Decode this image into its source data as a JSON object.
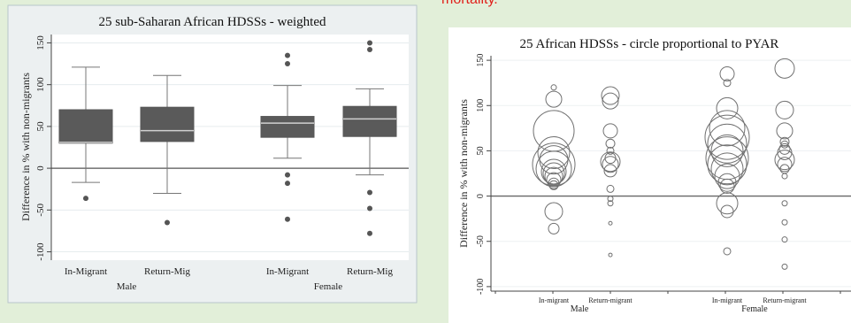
{
  "slide": {
    "header_fragment": "mortality."
  },
  "chart_data": [
    {
      "type": "boxplot",
      "title": "25 sub-Saharan African HDSSs - weighted",
      "xlabel": "",
      "ylabel": "Difference in % with non-migrants",
      "ylim": [
        -110,
        160
      ],
      "yticks": [
        -100,
        -50,
        0,
        50,
        100,
        150
      ],
      "reference_line": 0,
      "grid": true,
      "box_color": "#5a5a5a",
      "groups": [
        {
          "label": "Male",
          "categories": [
            "In-Migrant",
            "Return-Mig"
          ]
        },
        {
          "label": "Female",
          "categories": [
            "In-Migrant",
            "Return-Mig"
          ]
        }
      ],
      "boxes": [
        {
          "group": "Male",
          "category": "In-Migrant",
          "whisker_low": -17,
          "q1": 30,
          "median": 31,
          "q3": 70,
          "whisker_high": 121,
          "outliers": [
            -36
          ]
        },
        {
          "group": "Male",
          "category": "Return-Mig",
          "whisker_low": -30,
          "q1": 32,
          "median": 45,
          "q3": 73,
          "whisker_high": 111,
          "outliers": [
            -65
          ]
        },
        {
          "group": "Female",
          "category": "In-Migrant",
          "whisker_low": 12,
          "q1": 37,
          "median": 54,
          "q3": 62,
          "whisker_high": 99,
          "outliers": [
            135,
            125,
            -8,
            -18,
            -61
          ]
        },
        {
          "group": "Female",
          "category": "Return-Mig",
          "whisker_low": -8,
          "q1": 38,
          "median": 59,
          "q3": 74,
          "whisker_high": 95,
          "outliers": [
            150,
            142,
            -29,
            -48,
            -78
          ]
        }
      ]
    },
    {
      "type": "scatter",
      "title": "25 African HDSSs - circle proportional to PYAR",
      "xlabel": "",
      "ylabel": "Difference in % with non-migrants",
      "ylim": [
        -105,
        155
      ],
      "yticks": [
        -100,
        -50,
        0,
        50,
        100,
        150
      ],
      "reference_line": 0,
      "grid": true,
      "marker": "hollow circle",
      "groups": [
        {
          "label": "Male",
          "categories": [
            "In-migrant",
            "Return-migrant"
          ]
        },
        {
          "label": "Female",
          "categories": [
            "In-migrant",
            "Return-migrant"
          ]
        }
      ],
      "series": [
        {
          "group": "Male",
          "category": "In-migrant",
          "values": [
            120,
            107,
            72,
            48,
            40,
            35,
            30,
            27,
            25,
            22,
            18,
            14,
            12,
            -17,
            -36
          ],
          "relative_sizes": [
            3,
            9,
            23,
            18,
            16,
            24,
            20,
            14,
            12,
            10,
            8,
            6,
            5,
            10,
            6
          ]
        },
        {
          "group": "Male",
          "category": "Return-migrant",
          "values": [
            111,
            105,
            72,
            58,
            50,
            42,
            38,
            35,
            28,
            8,
            -3,
            -8,
            -30,
            -65
          ],
          "relative_sizes": [
            10,
            9,
            8,
            5,
            4,
            6,
            11,
            9,
            7,
            4,
            3,
            3,
            2,
            2
          ]
        },
        {
          "group": "Female",
          "category": "In-migrant",
          "values": [
            135,
            125,
            97,
            75,
            65,
            58,
            50,
            42,
            35,
            30,
            22,
            15,
            11,
            -8,
            -17,
            -61
          ],
          "relative_sizes": [
            8,
            4,
            12,
            20,
            25,
            22,
            18,
            24,
            22,
            18,
            14,
            10,
            8,
            12,
            7,
            4
          ]
        },
        {
          "group": "Female",
          "category": "Return-migrant",
          "values": [
            141,
            95,
            72,
            60,
            57,
            52,
            48,
            40,
            35,
            30,
            22,
            -8,
            -29,
            -48,
            -78
          ],
          "relative_sizes": [
            11,
            10,
            9,
            5,
            4,
            6,
            8,
            11,
            8,
            5,
            3,
            3,
            3,
            3,
            3
          ]
        }
      ]
    }
  ]
}
